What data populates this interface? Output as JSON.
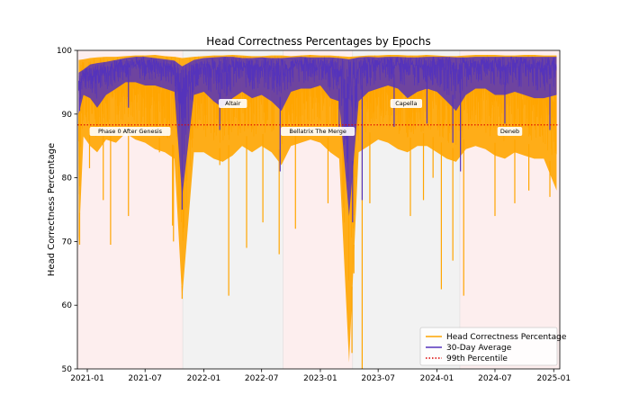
{
  "chart_data": {
    "type": "line",
    "title": "Head Correctness Percentages by Epochs",
    "xlabel": "",
    "ylabel": "Head Correctness Percentage",
    "xlim": [
      "2020-12-01",
      "2025-01-20"
    ],
    "ylim": [
      50,
      100
    ],
    "x_ticks": [
      "2021-01",
      "2021-07",
      "2022-01",
      "2022-07",
      "2023-01",
      "2023-07",
      "2024-01",
      "2024-07",
      "2025-01"
    ],
    "y_ticks": [
      50,
      60,
      70,
      80,
      90,
      100
    ],
    "grid": false,
    "legend_position": "lower-right",
    "percentile_99": 88.3,
    "eras": [
      {
        "label": "Phase 0 After Genesis",
        "start": "2020-12-01",
        "end": "2021-10-27",
        "color": "#fdeeee"
      },
      {
        "label": "Altair",
        "start": "2021-10-27",
        "end": "2022-09-06",
        "color": "#f2f2f2"
      },
      {
        "label": "Bellatrix The Merge",
        "start": "2022-09-06",
        "end": "2023-04-12",
        "color": "#fdeeee"
      },
      {
        "label": "Capella",
        "start": "2023-04-12",
        "end": "2024-03-13",
        "color": "#f2f2f2"
      },
      {
        "label": "Deneb",
        "start": "2024-03-13",
        "end": "2025-01-20",
        "color": "#fdeeee"
      }
    ],
    "series": [
      {
        "name": "Head Correctness Percentage",
        "color": "#ffa500",
        "x": [
          "2020-12-05",
          "2020-12-20",
          "2021-01-10",
          "2021-02-01",
          "2021-03-01",
          "2021-04-01",
          "2021-05-01",
          "2021-06-01",
          "2021-07-01",
          "2021-08-01",
          "2021-09-01",
          "2021-10-01",
          "2021-10-25",
          "2021-12-01",
          "2022-01-01",
          "2022-02-01",
          "2022-03-01",
          "2022-04-01",
          "2022-05-01",
          "2022-06-01",
          "2022-07-01",
          "2022-08-01",
          "2022-09-01",
          "2022-10-01",
          "2022-11-01",
          "2022-12-01",
          "2023-01-01",
          "2023-02-01",
          "2023-03-01",
          "2023-04-01",
          "2023-05-01",
          "2023-06-01",
          "2023-07-01",
          "2023-08-01",
          "2023-09-01",
          "2023-10-01",
          "2023-11-01",
          "2023-12-01",
          "2024-01-01",
          "2024-02-01",
          "2024-03-01",
          "2024-04-01",
          "2024-05-01",
          "2024-06-01",
          "2024-07-01",
          "2024-08-01",
          "2024-09-01",
          "2024-10-01",
          "2024-11-01",
          "2024-12-01",
          "2025-01-10"
        ],
        "y_upper": [
          98.5,
          98.6,
          98.8,
          98.9,
          99.0,
          99.0,
          99.1,
          99.2,
          99.2,
          99.3,
          99.1,
          99.0,
          98.8,
          99.0,
          99.1,
          99.2,
          99.2,
          99.3,
          99.2,
          99.1,
          99.1,
          99.2,
          99.2,
          99.1,
          99.2,
          99.3,
          99.2,
          99.2,
          99.1,
          99.0,
          99.1,
          99.2,
          99.2,
          99.3,
          99.3,
          99.2,
          99.2,
          99.3,
          99.2,
          99.1,
          99.1,
          99.2,
          99.3,
          99.3,
          99.3,
          99.2,
          99.2,
          99.3,
          99.3,
          99.2,
          99.2
        ],
        "y_lower": [
          69.0,
          86.5,
          85.0,
          84.0,
          86.0,
          85.5,
          87.0,
          86.0,
          85.5,
          84.5,
          84.0,
          83.0,
          61.0,
          84.0,
          84.0,
          83.0,
          82.5,
          83.5,
          85.0,
          84.0,
          85.0,
          84.0,
          82.0,
          85.0,
          85.5,
          86.0,
          85.5,
          84.0,
          83.0,
          51.0,
          84.0,
          85.0,
          86.0,
          85.5,
          84.5,
          84.0,
          85.0,
          85.0,
          84.0,
          83.0,
          82.5,
          84.5,
          85.0,
          84.5,
          83.5,
          83.0,
          84.0,
          83.5,
          83.0,
          83.0,
          78.0
        ],
        "dips": [
          [
            "2020-12-08",
            69.5
          ],
          [
            "2021-01-08",
            81.5
          ],
          [
            "2021-02-20",
            76.5
          ],
          [
            "2021-03-15",
            69.5
          ],
          [
            "2021-05-10",
            74.0
          ],
          [
            "2021-08-15",
            84.0
          ],
          [
            "2021-09-25",
            72.5
          ],
          [
            "2021-09-28",
            70.0
          ],
          [
            "2021-10-25",
            61.0
          ],
          [
            "2022-02-20",
            82.0
          ],
          [
            "2022-03-20",
            61.5
          ],
          [
            "2022-05-15",
            69.0
          ],
          [
            "2022-07-05",
            73.0
          ],
          [
            "2022-08-25",
            68.0
          ],
          [
            "2022-10-15",
            72.0
          ],
          [
            "2023-01-25",
            76.0
          ],
          [
            "2023-04-10",
            52.5
          ],
          [
            "2023-04-16",
            65.0
          ],
          [
            "2023-05-12",
            50.0
          ],
          [
            "2023-06-05",
            76.0
          ],
          [
            "2023-10-10",
            74.0
          ],
          [
            "2023-11-20",
            76.5
          ],
          [
            "2023-12-20",
            80.0
          ],
          [
            "2024-01-15",
            62.5
          ],
          [
            "2024-02-20",
            67.0
          ],
          [
            "2024-03-25",
            61.5
          ],
          [
            "2024-07-01",
            74.0
          ],
          [
            "2024-09-01",
            76.0
          ],
          [
            "2024-10-15",
            78.0
          ],
          [
            "2024-12-20",
            77.0
          ]
        ]
      },
      {
        "name": "30-Day Average",
        "color": "#5533bb",
        "x": [
          "2020-12-05",
          "2020-12-20",
          "2021-01-10",
          "2021-02-01",
          "2021-03-01",
          "2021-04-01",
          "2021-05-01",
          "2021-06-01",
          "2021-07-01",
          "2021-08-01",
          "2021-09-01",
          "2021-10-01",
          "2021-10-25",
          "2021-12-01",
          "2022-01-01",
          "2022-02-01",
          "2022-03-01",
          "2022-04-01",
          "2022-05-01",
          "2022-06-01",
          "2022-07-01",
          "2022-08-01",
          "2022-09-01",
          "2022-10-01",
          "2022-11-01",
          "2022-12-01",
          "2023-01-01",
          "2023-02-01",
          "2023-03-01",
          "2023-04-01",
          "2023-05-01",
          "2023-06-01",
          "2023-07-01",
          "2023-08-01",
          "2023-09-01",
          "2023-10-01",
          "2023-11-01",
          "2023-12-01",
          "2024-01-01",
          "2024-02-01",
          "2024-03-01",
          "2024-04-01",
          "2024-05-01",
          "2024-06-01",
          "2024-07-01",
          "2024-08-01",
          "2024-09-01",
          "2024-10-01",
          "2024-11-01",
          "2024-12-01",
          "2025-01-10"
        ],
        "y_upper": [
          96.5,
          97.0,
          97.8,
          98.0,
          98.2,
          98.5,
          98.8,
          99.0,
          99.0,
          98.8,
          98.6,
          98.4,
          97.5,
          98.5,
          98.8,
          98.9,
          99.0,
          99.0,
          98.8,
          98.8,
          98.9,
          98.8,
          98.8,
          98.9,
          99.0,
          98.9,
          98.9,
          98.9,
          98.8,
          98.6,
          98.9,
          99.0,
          98.9,
          99.0,
          99.0,
          98.9,
          98.9,
          99.0,
          99.0,
          99.0,
          98.9,
          98.9,
          99.0,
          99.0,
          99.0,
          99.0,
          99.0,
          99.0,
          99.0,
          99.0,
          99.0
        ],
        "y_lower": [
          90.0,
          93.0,
          92.5,
          91.0,
          93.0,
          94.0,
          95.0,
          95.0,
          94.5,
          94.5,
          94.0,
          93.5,
          77.0,
          93.0,
          93.5,
          92.0,
          91.0,
          92.5,
          93.5,
          92.5,
          93.0,
          92.0,
          90.5,
          93.5,
          94.0,
          94.0,
          94.5,
          92.5,
          92.0,
          74.0,
          92.0,
          93.5,
          94.0,
          94.5,
          94.0,
          92.5,
          93.5,
          94.0,
          93.5,
          92.0,
          90.5,
          93.0,
          94.0,
          94.0,
          93.0,
          93.0,
          93.5,
          93.0,
          92.5,
          92.5,
          93.0
        ],
        "dips": [
          [
            "2020-12-08",
            90.5
          ],
          [
            "2021-05-10",
            91.0
          ],
          [
            "2021-10-25",
            75.0
          ],
          [
            "2022-02-20",
            87.5
          ],
          [
            "2022-08-28",
            81.0
          ],
          [
            "2023-03-01",
            87.0
          ],
          [
            "2023-04-12",
            73.0
          ],
          [
            "2023-05-12",
            76.5
          ],
          [
            "2023-08-20",
            88.0
          ],
          [
            "2023-12-01",
            88.5
          ],
          [
            "2024-02-20",
            85.5
          ],
          [
            "2024-03-15",
            81.0
          ],
          [
            "2024-08-01",
            88.5
          ],
          [
            "2024-12-20",
            87.5
          ]
        ]
      },
      {
        "name": "99th Percentile",
        "color": "#dd0000",
        "style": "dotted",
        "y": 88.3
      }
    ]
  }
}
